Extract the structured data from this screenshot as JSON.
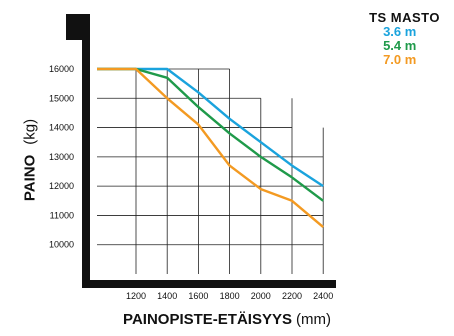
{
  "chart_data": {
    "type": "line",
    "xlabel": "PAINOPISTE-ETÄISYYS",
    "xlabel_unit": "(mm)",
    "ylabel": "PAINO",
    "ylabel_unit": "(kg)",
    "x_ticks": [
      1200,
      1400,
      1600,
      1800,
      2000,
      2200,
      2400
    ],
    "y_ticks": [
      10000,
      11000,
      12000,
      13000,
      14000,
      15000,
      16000
    ],
    "x_range": [
      950,
      2450
    ],
    "y_range": [
      9000,
      16000
    ],
    "grid": true,
    "legend_title": "TS  MASTO",
    "legend_position": "top-right",
    "series": [
      {
        "name": "3.6 m",
        "color": "#1aa3dd",
        "x": [
          950,
          1200,
          1400,
          1600,
          1800,
          2000,
          2200,
          2400
        ],
        "y": [
          16000,
          16000,
          16000,
          15200,
          14300,
          13500,
          12700,
          12000
        ]
      },
      {
        "name": "5.4 m",
        "color": "#1f9a4a",
        "x": [
          950,
          1200,
          1400,
          1600,
          1800,
          2000,
          2200,
          2400
        ],
        "y": [
          16000,
          16000,
          15700,
          14700,
          13800,
          13000,
          12300,
          11500
        ]
      },
      {
        "name": "7.0 m",
        "color": "#f39a22",
        "x": [
          950,
          1200,
          1400,
          1600,
          1800,
          2000,
          2200,
          2400
        ],
        "y": [
          16000,
          16000,
          15000,
          14100,
          12700,
          11900,
          11500,
          10600
        ]
      }
    ]
  }
}
